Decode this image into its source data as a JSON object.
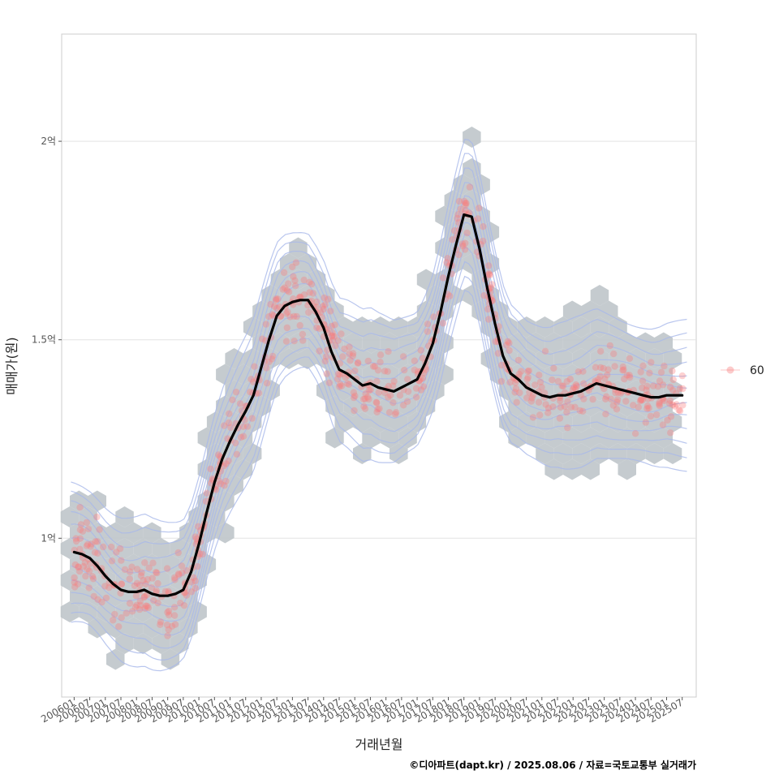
{
  "chart_data": {
    "type": "scatter",
    "title": "",
    "xlabel": "거래년월",
    "ylabel": "매매가(원)",
    "caption": "©디아파트(dapt.kr) / 2025.08.06 / 자료=국토교통부 실거래가",
    "x_tick_labels": [
      "200601",
      "200607",
      "200701",
      "200707",
      "200801",
      "200807",
      "200901",
      "200907",
      "201001",
      "201007",
      "201101",
      "201107",
      "201201",
      "201207",
      "201301",
      "201307",
      "201401",
      "201407",
      "201501",
      "201507",
      "201601",
      "201607",
      "201701",
      "201707",
      "201801",
      "201807",
      "201901",
      "201907",
      "202001",
      "202007",
      "202101",
      "202107",
      "202201",
      "202207",
      "202301",
      "202307",
      "202401",
      "202407",
      "202501",
      "202507"
    ],
    "x_range_index": [
      -0.8,
      39.9
    ],
    "y_ticks": [
      1.0,
      1.5,
      2.0
    ],
    "y_tick_labels": [
      "1억",
      "1.5억",
      "2억"
    ],
    "y_unit": "억원",
    "ylim": [
      0.6,
      2.27
    ],
    "grid": true,
    "legend": {
      "position": "right",
      "entries": [
        {
          "label": "60",
          "color": "#f87c7c"
        }
      ]
    },
    "series": [
      {
        "kind": "trend_line",
        "color": "#000000",
        "x": [
          0,
          0.5,
          1,
          1.5,
          2,
          2.5,
          3,
          3.5,
          4,
          4.5,
          5,
          5.5,
          6,
          6.5,
          7,
          7.5,
          8,
          8.5,
          9,
          9.5,
          10,
          10.5,
          11,
          11.5,
          12,
          12.5,
          13,
          13.5,
          14,
          14.5,
          15,
          15.5,
          16,
          16.5,
          17,
          17.5,
          18,
          18.5,
          19,
          19.5,
          20,
          20.5,
          21,
          21.5,
          22,
          22.5,
          23,
          23.5,
          24,
          24.5,
          25,
          25.5,
          26,
          26.5,
          27,
          27.5,
          28,
          28.5,
          29,
          29.5,
          30,
          30.5,
          31,
          31.5,
          32,
          32.5,
          33,
          33.5,
          34,
          34.5,
          35,
          35.5,
          36,
          36.5,
          37,
          37.5,
          38,
          38.5,
          39
        ],
        "y": [
          0.965,
          0.96,
          0.95,
          0.93,
          0.905,
          0.885,
          0.87,
          0.865,
          0.865,
          0.87,
          0.86,
          0.855,
          0.855,
          0.86,
          0.87,
          0.915,
          0.985,
          1.065,
          1.14,
          1.2,
          1.245,
          1.285,
          1.32,
          1.36,
          1.43,
          1.5,
          1.56,
          1.585,
          1.595,
          1.6,
          1.6,
          1.57,
          1.53,
          1.47,
          1.425,
          1.415,
          1.4,
          1.385,
          1.39,
          1.38,
          1.375,
          1.37,
          1.38,
          1.39,
          1.4,
          1.44,
          1.49,
          1.57,
          1.66,
          1.74,
          1.815,
          1.81,
          1.73,
          1.63,
          1.54,
          1.46,
          1.415,
          1.4,
          1.38,
          1.37,
          1.36,
          1.355,
          1.36,
          1.36,
          1.365,
          1.37,
          1.38,
          1.39,
          1.385,
          1.38,
          1.375,
          1.37,
          1.365,
          1.36,
          1.355,
          1.355,
          1.36,
          1.36,
          1.36
        ]
      }
    ],
    "layers": [
      "hexbin-density",
      "density-contours",
      "scatter-points",
      "trend-line"
    ],
    "colors": {
      "hexbin": "#bfc5ca",
      "contour": "#a8b8ea",
      "points": "#f87c7c",
      "trend": "#000000",
      "grid": "#e3e3e3",
      "panel_border": "#cccccc"
    }
  }
}
